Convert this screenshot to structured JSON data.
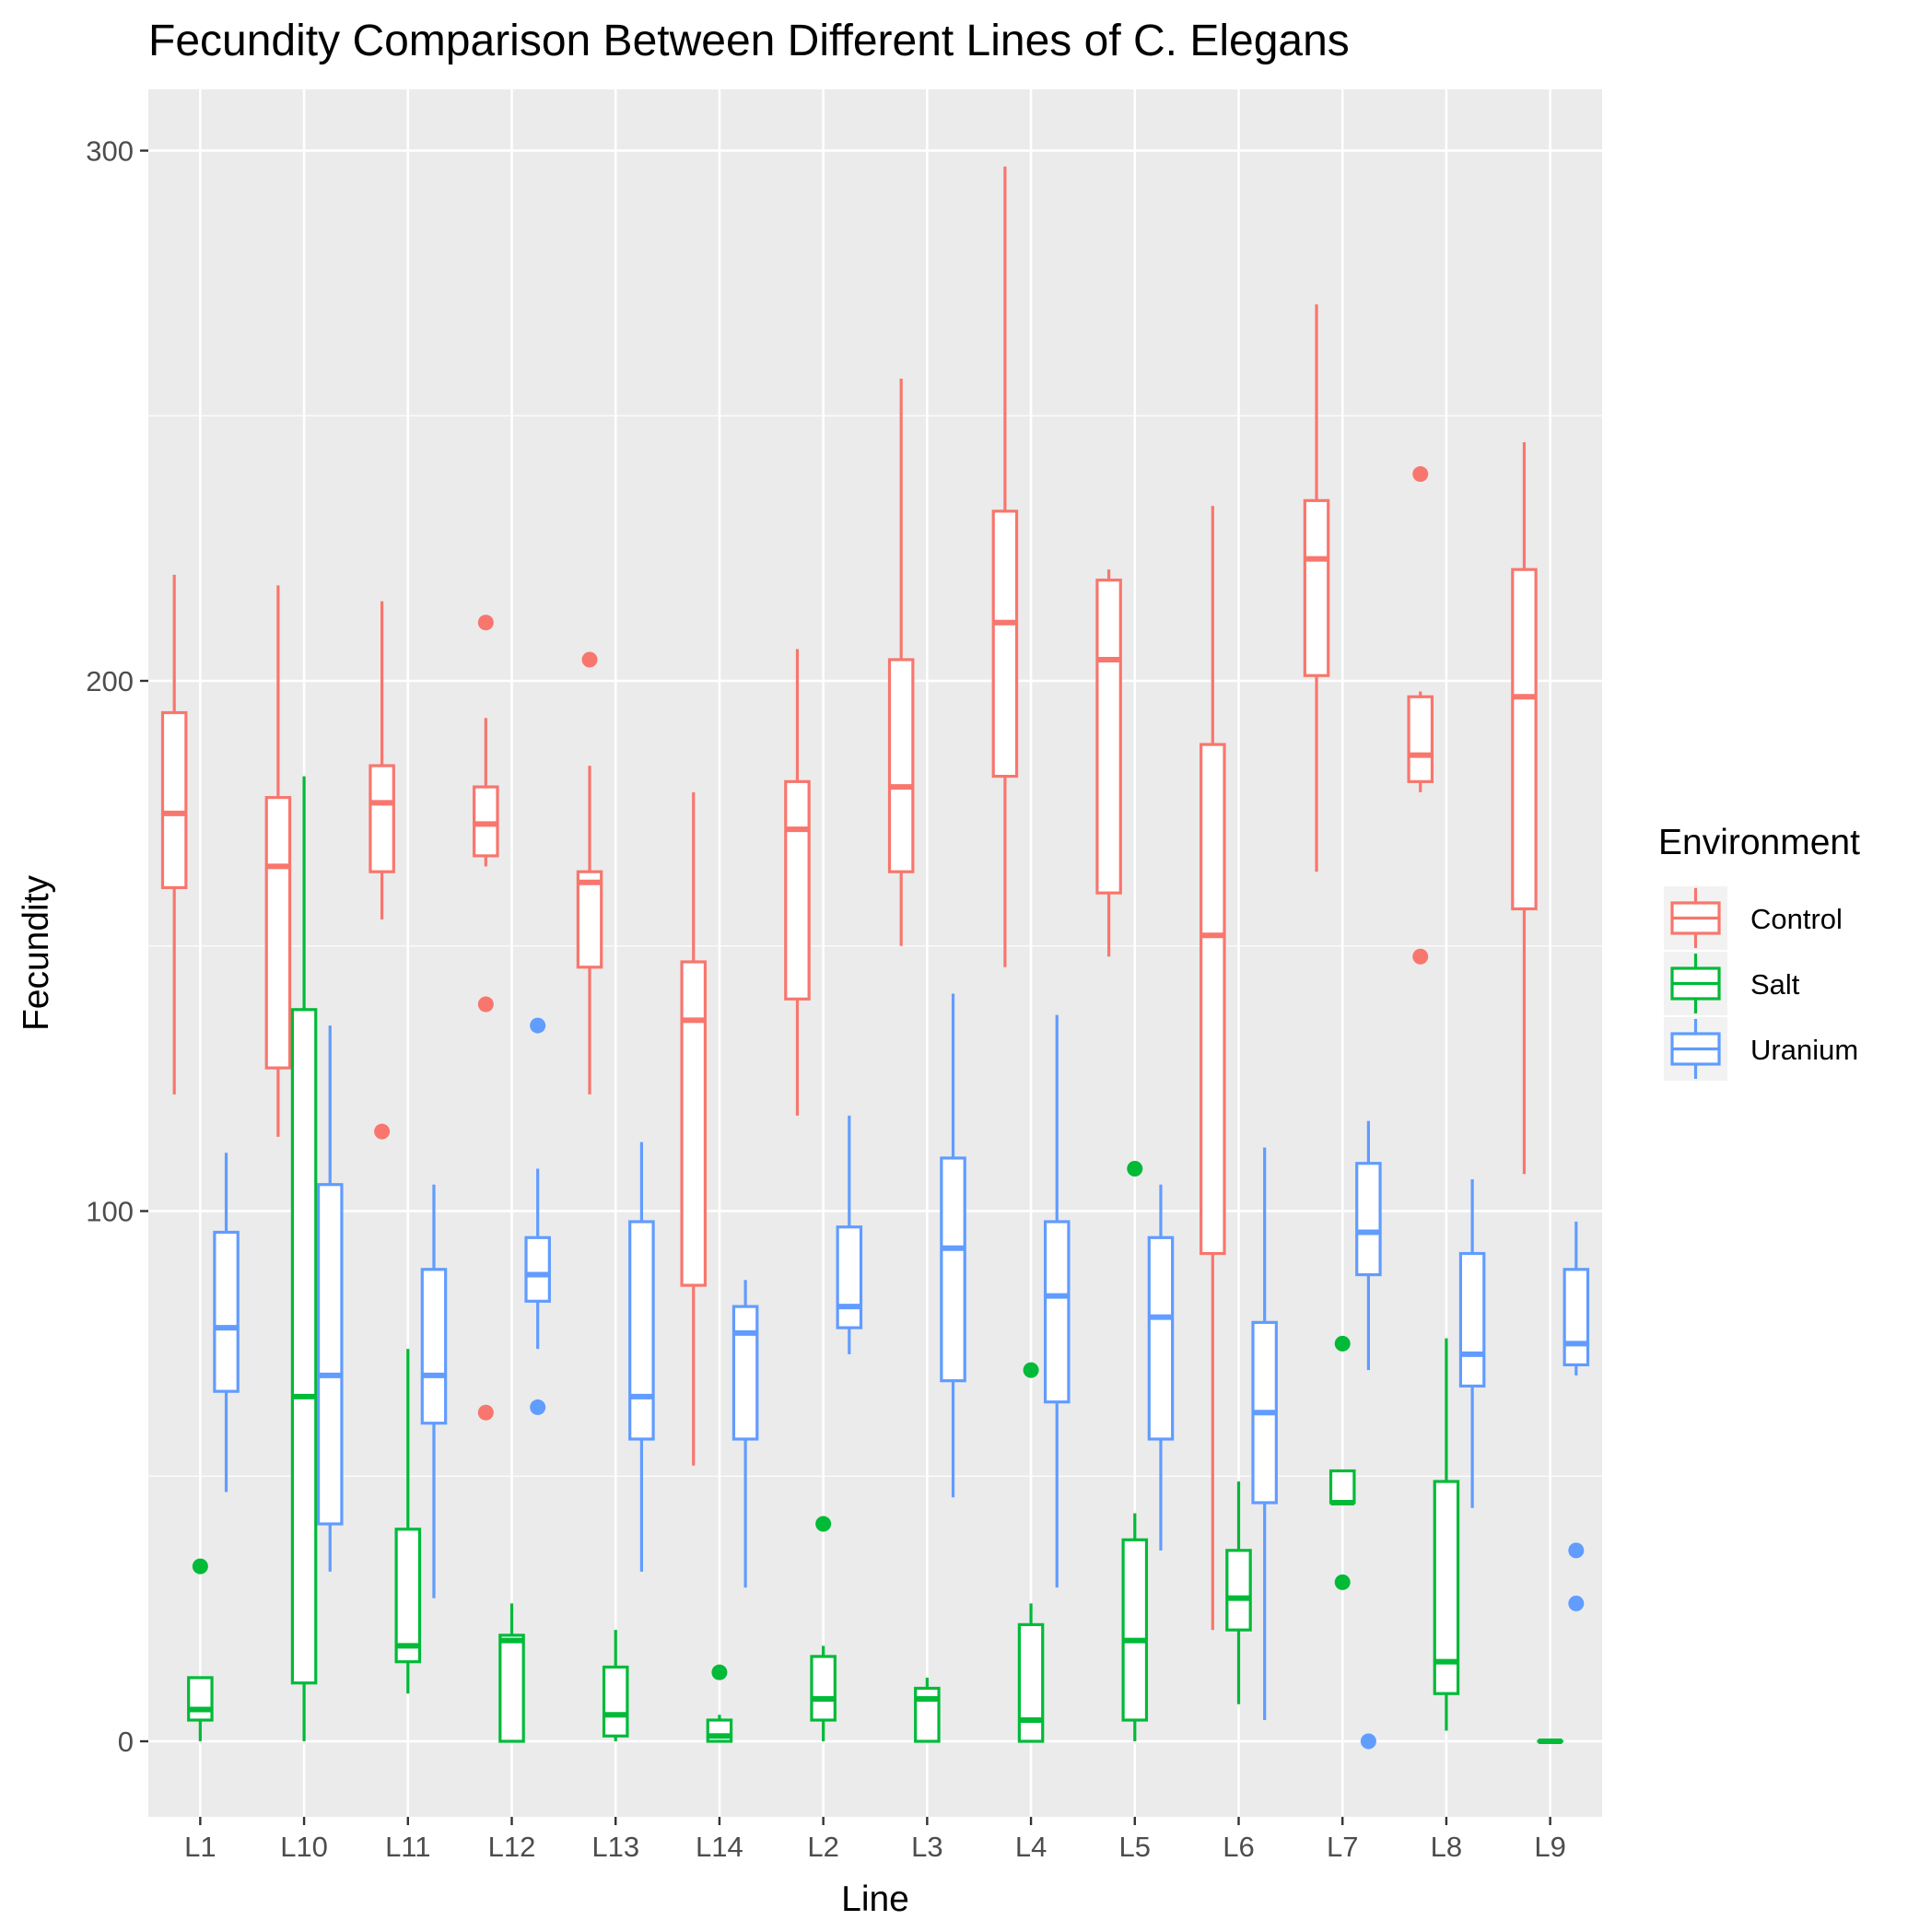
{
  "chart_data": {
    "type": "boxplot",
    "title": "Fecundity Comparison Between Different Lines of C. Elegans",
    "xlabel": "Line",
    "ylabel": "Fecundity",
    "ylim": [
      -15,
      315
    ],
    "yticks": [
      0,
      100,
      200,
      300
    ],
    "grid": true,
    "legend": {
      "title": "Environment",
      "placement": "right"
    },
    "categories": [
      "L1",
      "L10",
      "L11",
      "L12",
      "L13",
      "L14",
      "L2",
      "L3",
      "L4",
      "L5",
      "L6",
      "L7",
      "L8",
      "L9"
    ],
    "series": [
      {
        "name": "Control",
        "color": "#F8766D",
        "boxes": [
          {
            "min": 122,
            "q1": 161,
            "median": 175,
            "q3": 194,
            "max": 220,
            "outliers": []
          },
          {
            "min": 114,
            "q1": 127,
            "median": 165,
            "q3": 178,
            "max": 218,
            "outliers": []
          },
          {
            "min": 155,
            "q1": 164,
            "median": 177,
            "q3": 184,
            "max": 215,
            "outliers": [
              115
            ]
          },
          {
            "min": 165,
            "q1": 167,
            "median": 173,
            "q3": 180,
            "max": 193,
            "outliers": [
              211,
              139,
              62
            ]
          },
          {
            "min": 122,
            "q1": 146,
            "median": 162,
            "q3": 164,
            "max": 184,
            "outliers": [
              204
            ]
          },
          {
            "min": 52,
            "q1": 86,
            "median": 136,
            "q3": 147,
            "max": 179,
            "outliers": []
          },
          {
            "min": 118,
            "q1": 140,
            "median": 172,
            "q3": 181,
            "max": 206,
            "outliers": []
          },
          {
            "min": 150,
            "q1": 164,
            "median": 180,
            "q3": 204,
            "max": 257,
            "outliers": []
          },
          {
            "min": 146,
            "q1": 182,
            "median": 211,
            "q3": 232,
            "max": 297,
            "outliers": []
          },
          {
            "min": 148,
            "q1": 160,
            "median": 204,
            "q3": 219,
            "max": 221,
            "outliers": []
          },
          {
            "min": 21,
            "q1": 92,
            "median": 152,
            "q3": 188,
            "max": 233,
            "outliers": []
          },
          {
            "min": 164,
            "q1": 201,
            "median": 223,
            "q3": 234,
            "max": 271,
            "outliers": []
          },
          {
            "min": 179,
            "q1": 181,
            "median": 186,
            "q3": 197,
            "max": 198,
            "outliers": [
              239,
              148
            ]
          },
          {
            "min": 107,
            "q1": 157,
            "median": 197,
            "q3": 221,
            "max": 245,
            "outliers": []
          }
        ]
      },
      {
        "name": "Salt",
        "color": "#00BA38",
        "boxes": [
          {
            "min": 0,
            "q1": 4,
            "median": 6,
            "q3": 12,
            "max": 12,
            "outliers": [
              33
            ]
          },
          {
            "min": 0,
            "q1": 11,
            "median": 65,
            "q3": 138,
            "max": 182,
            "outliers": []
          },
          {
            "min": 9,
            "q1": 15,
            "median": 18,
            "q3": 40,
            "max": 74,
            "outliers": []
          },
          {
            "min": 0,
            "q1": 0,
            "median": 19,
            "q3": 20,
            "max": 26,
            "outliers": []
          },
          {
            "min": 0,
            "q1": 1,
            "median": 5,
            "q3": 14,
            "max": 21,
            "outliers": []
          },
          {
            "min": 0,
            "q1": 0,
            "median": 1,
            "q3": 4,
            "max": 5,
            "outliers": [
              13
            ]
          },
          {
            "min": 0,
            "q1": 4,
            "median": 8,
            "q3": 16,
            "max": 18,
            "outliers": [
              41
            ]
          },
          {
            "min": 0,
            "q1": 0,
            "median": 8,
            "q3": 10,
            "max": 12,
            "outliers": []
          },
          {
            "min": 0,
            "q1": 0,
            "median": 4,
            "q3": 22,
            "max": 26,
            "outliers": [
              70
            ]
          },
          {
            "min": 0,
            "q1": 4,
            "median": 19,
            "q3": 38,
            "max": 43,
            "outliers": [
              108
            ]
          },
          {
            "min": 7,
            "q1": 21,
            "median": 27,
            "q3": 36,
            "max": 49,
            "outliers": []
          },
          {
            "min": 45,
            "q1": 45,
            "median": 45,
            "q3": 51,
            "max": 51,
            "outliers": [
              75,
              30
            ]
          },
          {
            "min": 2,
            "q1": 9,
            "median": 15,
            "q3": 49,
            "max": 76,
            "outliers": []
          },
          {
            "min": 0,
            "q1": 0,
            "median": 0,
            "q3": 0,
            "max": 0,
            "outliers": []
          }
        ]
      },
      {
        "name": "Uranium",
        "color": "#619CFF",
        "boxes": [
          {
            "min": 47,
            "q1": 66,
            "median": 78,
            "q3": 96,
            "max": 111,
            "outliers": []
          },
          {
            "min": 32,
            "q1": 41,
            "median": 69,
            "q3": 105,
            "max": 135,
            "outliers": []
          },
          {
            "min": 27,
            "q1": 60,
            "median": 69,
            "q3": 89,
            "max": 105,
            "outliers": []
          },
          {
            "min": 74,
            "q1": 83,
            "median": 88,
            "q3": 95,
            "max": 108,
            "outliers": [
              135,
              63
            ]
          },
          {
            "min": 32,
            "q1": 57,
            "median": 65,
            "q3": 98,
            "max": 113,
            "outliers": []
          },
          {
            "min": 29,
            "q1": 57,
            "median": 77,
            "q3": 82,
            "max": 87,
            "outliers": []
          },
          {
            "min": 73,
            "q1": 78,
            "median": 82,
            "q3": 97,
            "max": 118,
            "outliers": []
          },
          {
            "min": 46,
            "q1": 68,
            "median": 93,
            "q3": 110,
            "max": 141,
            "outliers": []
          },
          {
            "min": 29,
            "q1": 64,
            "median": 84,
            "q3": 98,
            "max": 137,
            "outliers": []
          },
          {
            "min": 36,
            "q1": 57,
            "median": 80,
            "q3": 95,
            "max": 105,
            "outliers": []
          },
          {
            "min": 4,
            "q1": 45,
            "median": 62,
            "q3": 79,
            "max": 112,
            "outliers": []
          },
          {
            "min": 70,
            "q1": 88,
            "median": 96,
            "q3": 109,
            "max": 117,
            "outliers": [
              0
            ]
          },
          {
            "min": 44,
            "q1": 67,
            "median": 73,
            "q3": 92,
            "max": 106,
            "outliers": []
          },
          {
            "min": 69,
            "q1": 71,
            "median": 75,
            "q3": 89,
            "max": 98,
            "outliers": [
              36,
              26
            ]
          }
        ]
      }
    ]
  }
}
